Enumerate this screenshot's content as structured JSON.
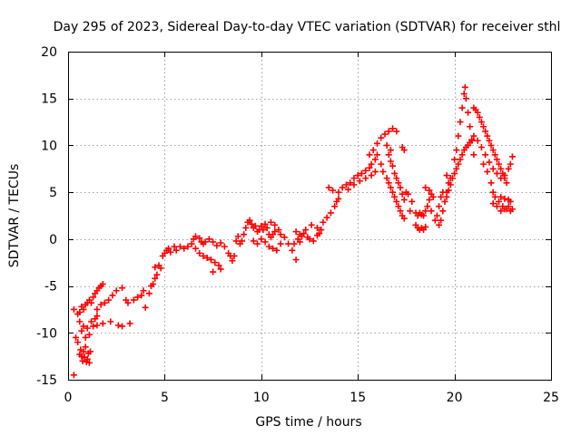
{
  "chart_data": {
    "type": "scatter",
    "title": "Day 295 of 2023, Sidereal Day-to-day VTEC variation (SDTVAR) for receiver sthl",
    "xlabel": "GPS time / hours",
    "ylabel": "SDTVAR / TECUs",
    "xlim": [
      0,
      25
    ],
    "ylim": [
      -15,
      20
    ],
    "xticks": [
      0,
      5,
      10,
      15,
      20,
      25
    ],
    "yticks": [
      -15,
      -10,
      -5,
      0,
      5,
      10,
      15,
      20
    ],
    "grid": true,
    "marker": "+",
    "color": "#ff0000",
    "series": [
      {
        "name": "SDTVAR",
        "points": [
          [
            0.3,
            -14.5
          ],
          [
            0.4,
            -10.5
          ],
          [
            0.5,
            -11.0
          ],
          [
            0.6,
            -12.3
          ],
          [
            0.65,
            -11.8
          ],
          [
            0.7,
            -12.5
          ],
          [
            0.75,
            -13.0
          ],
          [
            0.8,
            -12.0
          ],
          [
            0.85,
            -12.6
          ],
          [
            0.9,
            -11.5
          ],
          [
            0.95,
            -13.1
          ],
          [
            1.0,
            -12.8
          ],
          [
            1.05,
            -12.2
          ],
          [
            1.1,
            -13.2
          ],
          [
            1.15,
            -12.0
          ],
          [
            0.3,
            -7.5
          ],
          [
            0.5,
            -8.0
          ],
          [
            0.6,
            -8.8
          ],
          [
            0.7,
            -9.8
          ],
          [
            0.8,
            -9.3
          ],
          [
            0.9,
            -10.5
          ],
          [
            1.0,
            -9.5
          ],
          [
            1.1,
            -10.2
          ],
          [
            1.2,
            -8.8
          ],
          [
            1.3,
            -9.3
          ],
          [
            1.4,
            -8.5
          ],
          [
            1.5,
            -8.2
          ],
          [
            0.6,
            -7.8
          ],
          [
            0.7,
            -7.2
          ],
          [
            0.8,
            -7.5
          ],
          [
            0.9,
            -7.0
          ],
          [
            1.0,
            -6.8
          ],
          [
            1.1,
            -6.5
          ],
          [
            1.2,
            -6.8
          ],
          [
            1.3,
            -6.2
          ],
          [
            1.4,
            -5.8
          ],
          [
            1.5,
            -5.5
          ],
          [
            1.6,
            -5.2
          ],
          [
            1.7,
            -5.0
          ],
          [
            1.8,
            -4.8
          ],
          [
            1.5,
            -7.5
          ],
          [
            1.7,
            -7.0
          ],
          [
            1.9,
            -6.8
          ],
          [
            2.1,
            -6.5
          ],
          [
            2.3,
            -6.0
          ],
          [
            2.5,
            -5.5
          ],
          [
            2.8,
            -5.2
          ],
          [
            3.0,
            -6.5
          ],
          [
            3.1,
            -6.8
          ],
          [
            1.5,
            -9.2
          ],
          [
            1.8,
            -9.0
          ],
          [
            2.2,
            -8.8
          ],
          [
            2.6,
            -9.2
          ],
          [
            2.8,
            -9.3
          ],
          [
            3.2,
            -9.0
          ],
          [
            3.4,
            -6.5
          ],
          [
            3.6,
            -6.2
          ],
          [
            3.8,
            -6.0
          ],
          [
            3.9,
            -5.5
          ],
          [
            4.0,
            -7.3
          ],
          [
            4.2,
            -5.8
          ],
          [
            4.3,
            -5.0
          ],
          [
            4.4,
            -4.8
          ],
          [
            4.5,
            -4.2
          ],
          [
            4.6,
            -3.8
          ],
          [
            4.5,
            -3.0
          ],
          [
            4.7,
            -2.8
          ],
          [
            4.8,
            -3.1
          ],
          [
            4.9,
            -1.8
          ],
          [
            5.0,
            -1.5
          ],
          [
            5.1,
            -1.2
          ],
          [
            5.2,
            -1.0
          ],
          [
            5.3,
            -1.4
          ],
          [
            5.5,
            -0.8
          ],
          [
            5.6,
            -1.2
          ],
          [
            5.8,
            -0.8
          ],
          [
            6.0,
            -1.0
          ],
          [
            6.2,
            -0.8
          ],
          [
            6.4,
            -0.5
          ],
          [
            6.5,
            0.0
          ],
          [
            6.6,
            0.3
          ],
          [
            6.8,
            0.1
          ],
          [
            6.9,
            -0.3
          ],
          [
            7.0,
            -0.5
          ],
          [
            7.1,
            -0.3
          ],
          [
            7.3,
            0.0
          ],
          [
            7.5,
            -0.3
          ],
          [
            6.6,
            -1.0
          ],
          [
            6.8,
            -1.5
          ],
          [
            7.0,
            -1.8
          ],
          [
            7.2,
            -2.0
          ],
          [
            7.4,
            -2.2
          ],
          [
            7.6,
            -2.5
          ],
          [
            7.8,
            -2.8
          ],
          [
            7.9,
            -3.2
          ],
          [
            7.5,
            -3.5
          ],
          [
            7.7,
            -0.7
          ],
          [
            7.9,
            -0.4
          ],
          [
            8.1,
            -0.8
          ],
          [
            8.3,
            -1.5
          ],
          [
            8.4,
            -1.8
          ],
          [
            8.5,
            -2.3
          ],
          [
            8.6,
            -1.8
          ],
          [
            8.7,
            -0.2
          ],
          [
            8.8,
            0.3
          ],
          [
            8.9,
            -0.5
          ],
          [
            9.0,
            -0.2
          ],
          [
            9.1,
            0.5
          ],
          [
            9.2,
            1.2
          ],
          [
            9.3,
            1.8
          ],
          [
            9.4,
            2.0
          ],
          [
            9.5,
            1.6
          ],
          [
            9.6,
            1.2
          ],
          [
            9.7,
            1.4
          ],
          [
            9.8,
            0.8
          ],
          [
            9.9,
            1.0
          ],
          [
            10.0,
            1.4
          ],
          [
            10.1,
            1.0
          ],
          [
            10.2,
            1.6
          ],
          [
            10.3,
            1.2
          ],
          [
            10.4,
            0.5
          ],
          [
            10.5,
            0.2
          ],
          [
            10.6,
            0.5
          ],
          [
            10.7,
            0.8
          ],
          [
            9.6,
            -0.2
          ],
          [
            9.8,
            -0.5
          ],
          [
            10.0,
            0.0
          ],
          [
            10.2,
            -0.3
          ],
          [
            10.4,
            -0.8
          ],
          [
            10.6,
            -1.0
          ],
          [
            10.8,
            -1.2
          ],
          [
            11.0,
            -0.5
          ],
          [
            10.5,
            1.8
          ],
          [
            10.7,
            1.5
          ],
          [
            10.9,
            1.0
          ],
          [
            11.0,
            0.5
          ],
          [
            11.2,
            0.2
          ],
          [
            11.4,
            -0.5
          ],
          [
            11.6,
            -1.2
          ],
          [
            11.8,
            -2.2
          ],
          [
            11.7,
            -0.5
          ],
          [
            11.9,
            0.0
          ],
          [
            12.0,
            -0.3
          ],
          [
            12.1,
            0.3
          ],
          [
            12.2,
            0.6
          ],
          [
            12.4,
            0.2
          ],
          [
            12.5,
            0.0
          ],
          [
            12.7,
            -0.2
          ],
          [
            12.9,
            0.4
          ],
          [
            13.0,
            0.6
          ],
          [
            11.8,
            0.8
          ],
          [
            12.0,
            0.5
          ],
          [
            12.3,
            1.0
          ],
          [
            12.6,
            1.5
          ],
          [
            12.9,
            1.2
          ],
          [
            13.1,
            1.0
          ],
          [
            13.2,
            1.8
          ],
          [
            13.4,
            2.3
          ],
          [
            13.6,
            2.8
          ],
          [
            13.8,
            3.5
          ],
          [
            13.9,
            4.0
          ],
          [
            14.0,
            4.3
          ],
          [
            13.5,
            5.5
          ],
          [
            13.7,
            5.2
          ],
          [
            14.0,
            5.0
          ],
          [
            14.2,
            5.5
          ],
          [
            14.4,
            5.8
          ],
          [
            14.6,
            6.0
          ],
          [
            14.8,
            6.5
          ],
          [
            15.0,
            6.8
          ],
          [
            15.2,
            7.0
          ],
          [
            15.4,
            7.3
          ],
          [
            15.6,
            7.6
          ],
          [
            15.7,
            8.0
          ],
          [
            15.9,
            8.5
          ],
          [
            16.0,
            9.0
          ],
          [
            14.5,
            5.3
          ],
          [
            14.8,
            5.8
          ],
          [
            15.1,
            6.2
          ],
          [
            15.4,
            6.5
          ],
          [
            15.7,
            6.8
          ],
          [
            15.9,
            7.2
          ],
          [
            15.6,
            9.0
          ],
          [
            15.8,
            9.5
          ],
          [
            16.0,
            10.2
          ],
          [
            16.2,
            10.8
          ],
          [
            16.4,
            11.2
          ],
          [
            16.6,
            11.5
          ],
          [
            16.8,
            11.8
          ],
          [
            17.0,
            11.5
          ],
          [
            16.5,
            10.0
          ],
          [
            16.7,
            9.5
          ],
          [
            16.6,
            9.0
          ],
          [
            16.7,
            8.3
          ],
          [
            16.8,
            7.8
          ],
          [
            16.9,
            7.0
          ],
          [
            17.0,
            6.5
          ],
          [
            17.1,
            6.0
          ],
          [
            17.2,
            5.5
          ],
          [
            17.3,
            4.8
          ],
          [
            17.4,
            4.2
          ],
          [
            16.2,
            8.0
          ],
          [
            16.3,
            7.2
          ],
          [
            16.5,
            6.5
          ],
          [
            16.6,
            6.0
          ],
          [
            16.7,
            5.5
          ],
          [
            16.8,
            5.0
          ],
          [
            16.9,
            4.5
          ],
          [
            17.0,
            4.0
          ],
          [
            17.1,
            3.5
          ],
          [
            17.2,
            3.0
          ],
          [
            17.3,
            2.5
          ],
          [
            17.4,
            2.2
          ],
          [
            17.3,
            9.8
          ],
          [
            17.4,
            9.5
          ],
          [
            17.5,
            5.0
          ],
          [
            17.6,
            4.8
          ],
          [
            17.7,
            3.0
          ],
          [
            17.8,
            4.0
          ],
          [
            18.0,
            2.8
          ],
          [
            18.1,
            2.5
          ],
          [
            18.2,
            2.8
          ],
          [
            18.3,
            2.6
          ],
          [
            18.4,
            2.5
          ],
          [
            18.5,
            3.0
          ],
          [
            18.6,
            3.5
          ],
          [
            18.7,
            4.2
          ],
          [
            18.8,
            4.8
          ],
          [
            18.5,
            5.5
          ],
          [
            18.7,
            5.2
          ],
          [
            18.0,
            1.5
          ],
          [
            18.1,
            1.2
          ],
          [
            18.2,
            1.0
          ],
          [
            18.3,
            1.2
          ],
          [
            18.4,
            1.0
          ],
          [
            18.5,
            1.3
          ],
          [
            18.8,
            3.0
          ],
          [
            18.9,
            4.5
          ],
          [
            19.0,
            2.0
          ],
          [
            19.1,
            2.5
          ],
          [
            19.2,
            3.5
          ],
          [
            19.3,
            4.5
          ],
          [
            19.4,
            5.0
          ],
          [
            19.2,
            1.5
          ],
          [
            19.3,
            2.0
          ],
          [
            19.4,
            3.0
          ],
          [
            19.5,
            4.0
          ],
          [
            19.6,
            5.0
          ],
          [
            19.7,
            6.0
          ],
          [
            19.8,
            6.5
          ],
          [
            19.6,
            6.8
          ],
          [
            19.6,
            4.5
          ],
          [
            19.7,
            5.2
          ],
          [
            19.8,
            5.8
          ],
          [
            19.9,
            6.5
          ],
          [
            20.0,
            7.0
          ],
          [
            20.1,
            7.5
          ],
          [
            20.2,
            8.0
          ],
          [
            20.3,
            8.5
          ],
          [
            20.4,
            9.0
          ],
          [
            20.5,
            9.5
          ],
          [
            20.6,
            9.8
          ],
          [
            20.7,
            10.0
          ],
          [
            20.8,
            10.3
          ],
          [
            20.9,
            10.6
          ],
          [
            21.0,
            11.0
          ],
          [
            20.0,
            8.5
          ],
          [
            20.1,
            9.5
          ],
          [
            20.2,
            11.0
          ],
          [
            20.3,
            12.5
          ],
          [
            20.4,
            14.0
          ],
          [
            20.5,
            15.5
          ],
          [
            20.55,
            16.2
          ],
          [
            20.6,
            15.0
          ],
          [
            20.7,
            13.5
          ],
          [
            20.8,
            12.0
          ],
          [
            20.9,
            10.5
          ],
          [
            21.0,
            9.0
          ],
          [
            21.0,
            14.0
          ],
          [
            21.1,
            13.8
          ],
          [
            21.2,
            13.5
          ],
          [
            21.3,
            13.0
          ],
          [
            21.4,
            12.5
          ],
          [
            21.5,
            12.0
          ],
          [
            21.6,
            11.5
          ],
          [
            21.7,
            11.0
          ],
          [
            21.8,
            10.5
          ],
          [
            21.9,
            10.0
          ],
          [
            22.0,
            9.5
          ],
          [
            22.1,
            9.0
          ],
          [
            22.2,
            8.5
          ],
          [
            22.3,
            8.0
          ],
          [
            22.4,
            7.5
          ],
          [
            22.5,
            7.0
          ],
          [
            22.6,
            6.5
          ],
          [
            22.7,
            6.0
          ],
          [
            21.2,
            10.5
          ],
          [
            21.4,
            9.8
          ],
          [
            21.6,
            9.0
          ],
          [
            21.8,
            8.2
          ],
          [
            22.0,
            7.5
          ],
          [
            22.2,
            7.0
          ],
          [
            22.4,
            6.5
          ],
          [
            22.6,
            6.8
          ],
          [
            22.8,
            7.5
          ],
          [
            22.9,
            8.0
          ],
          [
            23.0,
            8.8
          ],
          [
            21.5,
            8.0
          ],
          [
            21.7,
            7.2
          ],
          [
            21.9,
            6.0
          ],
          [
            22.0,
            5.0
          ],
          [
            22.1,
            4.5
          ],
          [
            22.3,
            4.0
          ],
          [
            22.5,
            3.5
          ],
          [
            22.7,
            3.2
          ],
          [
            22.9,
            3.0
          ],
          [
            23.0,
            3.2
          ],
          [
            22.0,
            3.8
          ],
          [
            22.2,
            3.5
          ],
          [
            22.4,
            3.0
          ],
          [
            22.6,
            3.2
          ],
          [
            22.8,
            3.5
          ],
          [
            22.4,
            4.5
          ],
          [
            22.6,
            4.3
          ],
          [
            22.8,
            4.2
          ],
          [
            22.9,
            4.0
          ]
        ]
      }
    ]
  }
}
